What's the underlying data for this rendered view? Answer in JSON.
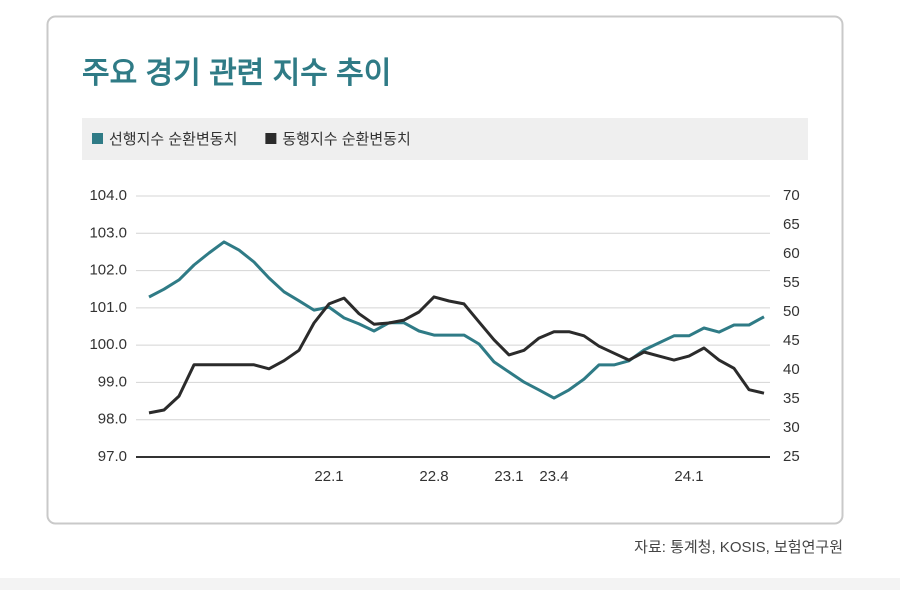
{
  "chart_data": {
    "type": "line",
    "title": "주요 경기 관련 지수 추이",
    "source": "자료: 통계청, KOSIS, 보험연구원",
    "categories": [
      null,
      null,
      null,
      null,
      null,
      null,
      null,
      null,
      null,
      null,
      null,
      null,
      "22.1",
      null,
      null,
      null,
      null,
      null,
      null,
      "22.8",
      null,
      null,
      null,
      null,
      "23.1",
      null,
      null,
      "23.4",
      null,
      null,
      null,
      null,
      null,
      null,
      null,
      null,
      "24.1",
      null,
      null,
      null,
      null,
      null
    ],
    "series": [
      {
        "name": "선행지수 순환변동치",
        "color": "#2f7b86",
        "axis": "y",
        "values": [
          101.29,
          101.5,
          101.75,
          102.15,
          102.47,
          102.77,
          102.55,
          102.23,
          101.8,
          101.43,
          101.19,
          100.94,
          101.02,
          100.73,
          100.57,
          100.38,
          100.6,
          100.6,
          100.38,
          100.27,
          100.27,
          100.27,
          100.03,
          99.55,
          99.28,
          99.01,
          98.8,
          98.58,
          98.8,
          99.09,
          99.47,
          99.47,
          99.58,
          99.87,
          100.06,
          100.25,
          100.25,
          100.46,
          100.35,
          100.54,
          100.54,
          100.76
        ]
      },
      {
        "name": "동행지수 순환변동치",
        "color": "#2b2b2b",
        "axis": "y2",
        "values": [
          32.6,
          33.1,
          35.5,
          40.9,
          40.9,
          40.9,
          40.9,
          40.9,
          40.2,
          41.6,
          43.4,
          48.1,
          51.4,
          52.4,
          49.7,
          47.9,
          48.1,
          48.6,
          50.0,
          52.6,
          51.9,
          51.4,
          48.3,
          45.2,
          42.6,
          43.4,
          45.5,
          46.6,
          46.6,
          45.9,
          44.1,
          42.9,
          41.7,
          43.1,
          42.4,
          41.7,
          42.4,
          43.8,
          41.7,
          40.3,
          36.6,
          36.0
        ]
      }
    ],
    "ylim": [
      97,
      104
    ],
    "yticks": [
      {
        "value": 97,
        "label": "97.0"
      },
      {
        "value": 98,
        "label": "98.0"
      },
      {
        "value": 99,
        "label": "99.0"
      },
      {
        "value": 100,
        "label": "100.0"
      },
      {
        "value": 101,
        "label": "101.0"
      },
      {
        "value": 102,
        "label": "102.0"
      },
      {
        "value": 103,
        "label": "103.0"
      },
      {
        "value": 104,
        "label": "104.0"
      }
    ],
    "y2lim": [
      25,
      70
    ],
    "y2ticks": [
      25,
      30,
      35,
      40,
      45,
      50,
      55,
      60,
      65,
      70
    ],
    "grid": true
  }
}
